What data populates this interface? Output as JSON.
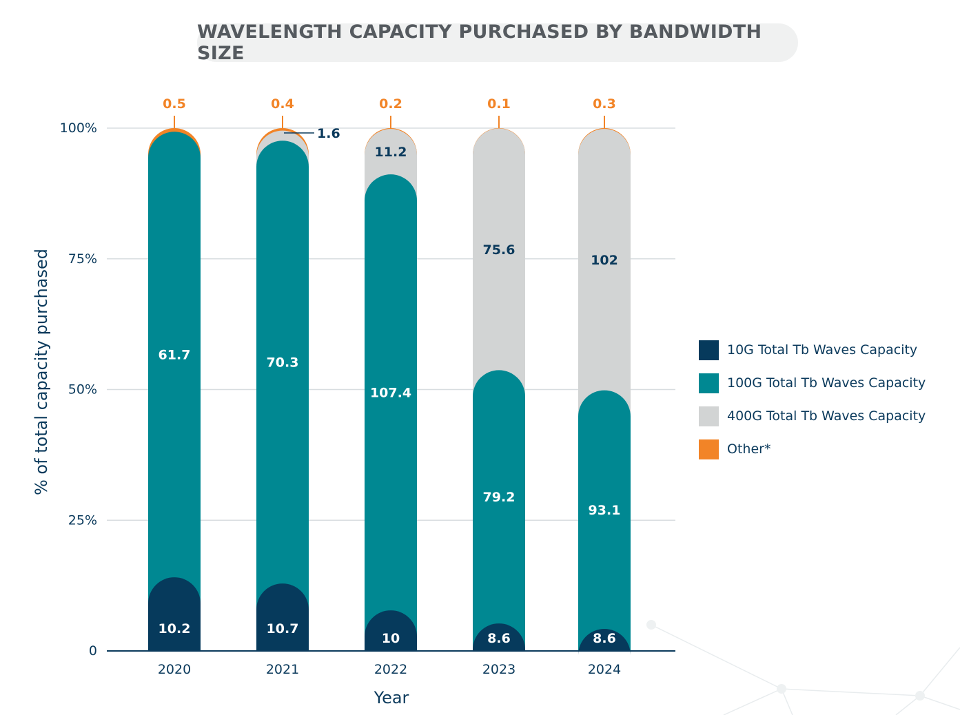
{
  "title": "WAVELENGTH CAPACITY PURCHASED BY BANDWIDTH SIZE",
  "colors": {
    "10G": "#063a5c",
    "100G": "#008892",
    "400G": "#d2d4d4",
    "other": "#f28427",
    "axis_text": "#0b3a5c",
    "grid": "#d8dde0"
  },
  "legend": [
    {
      "label": "10G Total Tb Waves Capacity",
      "color": "#063a5c"
    },
    {
      "label": "100G Total Tb Waves Capacity",
      "color": "#008892"
    },
    {
      "label": "400G Total Tb Waves Capacity",
      "color": "#d2d4d4"
    },
    {
      "label": "Other*",
      "color": "#f28427"
    }
  ],
  "chart_data": {
    "type": "bar",
    "stacked": true,
    "normalized": true,
    "title": "WAVELENGTH CAPACITY PURCHASED BY BANDWIDTH SIZE",
    "xlabel": "Year",
    "ylabel": "% of total capacity purchased",
    "ylim": [
      0,
      100
    ],
    "yticks": [
      "0",
      "25%",
      "50%",
      "75%",
      "100%"
    ],
    "ytick_values": [
      0,
      25,
      50,
      75,
      100
    ],
    "grid": true,
    "legend_position": "right",
    "categories": [
      "2020",
      "2021",
      "2022",
      "2023",
      "2024"
    ],
    "series": [
      {
        "name": "10G Total Tb Waves Capacity",
        "values": [
          10.2,
          10.7,
          10,
          8.6,
          8.6
        ],
        "labels": [
          "10.2",
          "10.7",
          "10",
          "8.6",
          "8.6"
        ]
      },
      {
        "name": "100G Total Tb Waves Capacity",
        "values": [
          61.7,
          70.3,
          107.4,
          79.2,
          93.1
        ],
        "labels": [
          "61.7",
          "70.3",
          "107.4",
          "79.2",
          "93.1"
        ]
      },
      {
        "name": "400G Total Tb Waves Capacity",
        "values": [
          0,
          1.6,
          11.2,
          75.6,
          102
        ],
        "labels": [
          "",
          "1.6",
          "11.2",
          "75.6",
          "102"
        ]
      },
      {
        "name": "Other*",
        "values": [
          0.5,
          0.4,
          0.2,
          0.1,
          0.3
        ],
        "labels": [
          "0.5",
          "0.4",
          "0.2",
          "0.1",
          "0.3"
        ]
      }
    ]
  }
}
